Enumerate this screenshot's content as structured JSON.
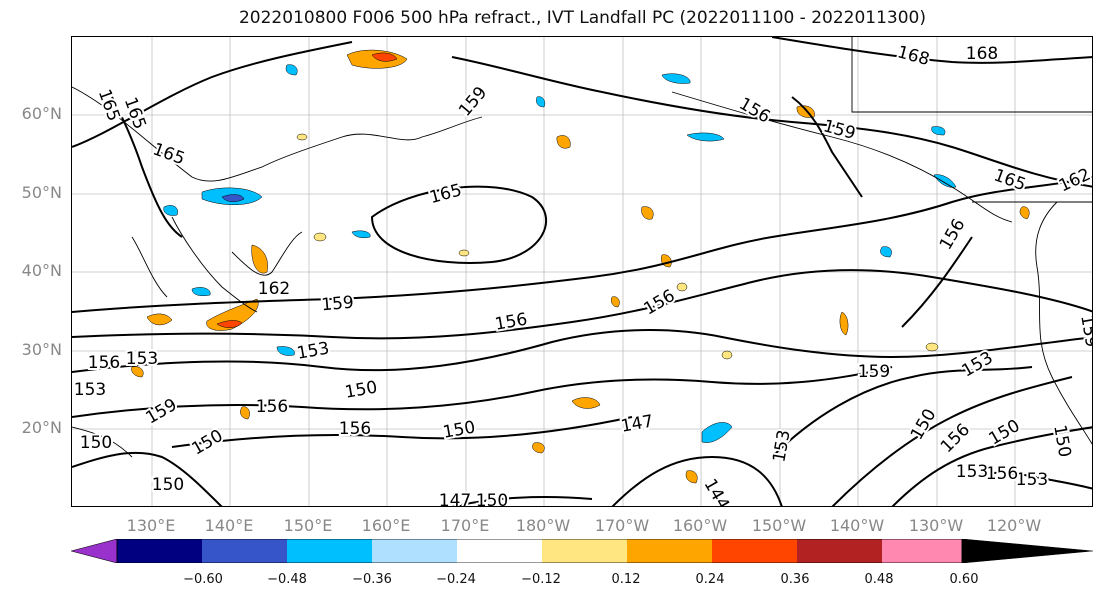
{
  "title": "2022010800 F006 500 hPa refract., IVT Landfall PC (2022011100 - 2022011300)",
  "lat_labels": [
    "60°N",
    "50°N",
    "40°N",
    "30°N",
    "20°N"
  ],
  "lon_labels": [
    "130°E",
    "140°E",
    "150°E",
    "160°E",
    "170°E",
    "180°W",
    "170°W",
    "160°W",
    "150°W",
    "140°W",
    "130°W",
    "120°W"
  ],
  "contour_labels": [
    "165",
    "165",
    "165",
    "159",
    "168",
    "168",
    "156",
    "159",
    "165",
    "162",
    "165",
    "156",
    "162",
    "159",
    "156",
    "156",
    "153",
    "156",
    "153",
    "153",
    "159",
    "156",
    "150",
    "156",
    "150",
    "147",
    "159",
    "153",
    "150",
    "156",
    "150",
    "150",
    "150",
    "150",
    "147",
    "150",
    "144",
    "153",
    "153",
    "156",
    "153",
    "159",
    "150"
  ],
  "colorbar": {
    "colors": [
      "#9932cc",
      "#000080",
      "#3555c8",
      "#00bfff",
      "#b0e0ff",
      "#ffffff",
      "#ffe680",
      "#ffa500",
      "#ff4500",
      "#b22222",
      "#ff88b0"
    ],
    "tick_labels": [
      "−0.60",
      "−0.48",
      "−0.36",
      "−0.24",
      "−0.12",
      "0.12",
      "0.24",
      "0.36",
      "0.48",
      "0.60"
    ]
  },
  "colors": {
    "contour": "#000000",
    "coast": "#000000",
    "grid": "#999999",
    "axis_label": "#888888",
    "orange_fill": "#ffa500",
    "red_fill": "#ff4500",
    "yellow_fill": "#ffe680",
    "blue_fill": "#00bfff",
    "lightblue_fill": "#b0e0ff"
  }
}
